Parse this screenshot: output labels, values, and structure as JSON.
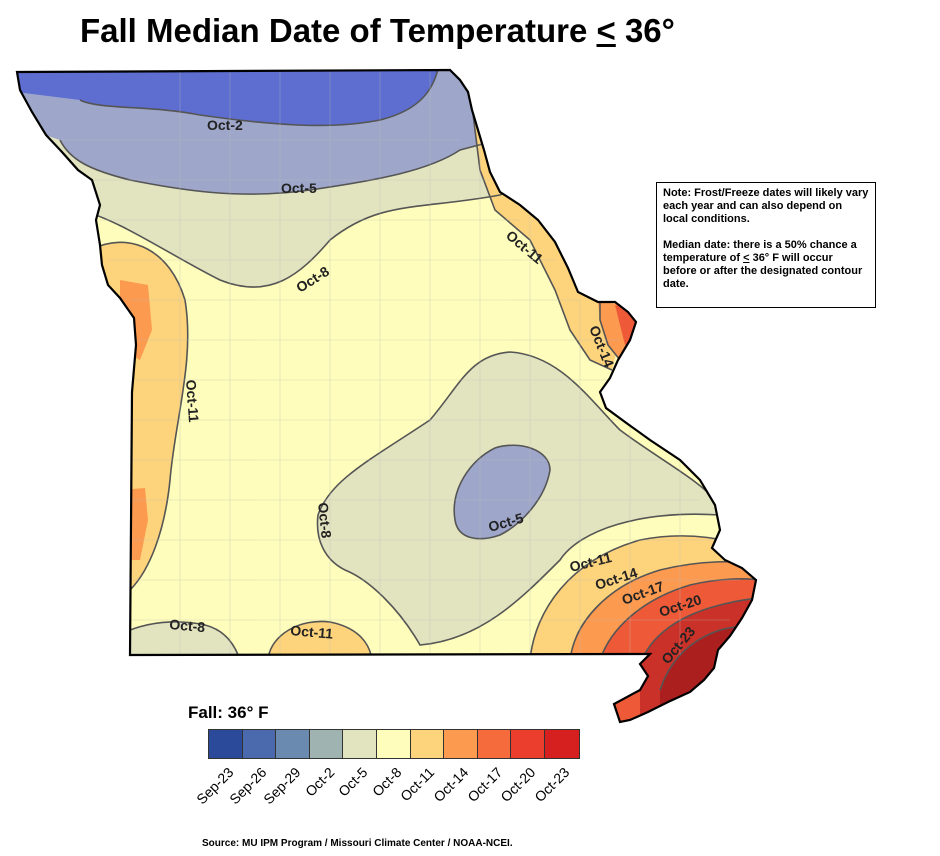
{
  "title": {
    "prefix": "Fall Median Date of Temperature ",
    "symbol": "<",
    "suffix": " 36°"
  },
  "note": {
    "line1": "Note: Frost/Freeze dates will likely vary each year and can also depend on local conditions.",
    "line2_prefix": "Median date: there is a 50% chance a temperature of ",
    "line2_symbol": "<",
    "line2_suffix": " 36° F will occur before or after the designated contour date."
  },
  "legend": {
    "title": "Fall: 36° F",
    "classes": [
      {
        "label": "Sep-23",
        "color": "#2b4a9a"
      },
      {
        "label": "Sep-26",
        "color": "#4a6aad"
      },
      {
        "label": "Sep-29",
        "color": "#6a8ab0"
      },
      {
        "label": "Oct-2",
        "color": "#9fb3b0"
      },
      {
        "label": "Oct-5",
        "color": "#e1e4bf"
      },
      {
        "label": "Oct-8",
        "color": "#fefdbb"
      },
      {
        "label": "Oct-11",
        "color": "#fdd47c"
      },
      {
        "label": "Oct-14",
        "color": "#fc9a50"
      },
      {
        "label": "Oct-17",
        "color": "#f66b3c"
      },
      {
        "label": "Oct-20",
        "color": "#ec3e2c"
      },
      {
        "label": "Oct-23",
        "color": "#d61f1f"
      }
    ]
  },
  "map": {
    "zone_colors": {
      "oct2": "#5d6ed0",
      "oct5": "#9ea7c9",
      "oct8": "#e2e4bf",
      "oct11": "#fefdbb",
      "oct14": "#fdd47c",
      "oct17": "#fc9a50",
      "oct20": "#ee5a38",
      "oct23": "#ca3128",
      "deep": "#ab1f1f"
    },
    "contour_labels": {
      "oct2_north": "Oct-2",
      "oct5_north": "Oct-5",
      "oct8_north": "Oct-8",
      "oct11_east": "Oct-11",
      "oct14_east": "Oct-14",
      "oct11_west": "Oct-11",
      "oct8_central": "Oct-8",
      "oct5_central": "Oct-5",
      "oct8_sw": "Oct-8",
      "oct11_south": "Oct-11",
      "oct11_se": "Oct-11",
      "oct14_se": "Oct-14",
      "oct17_se": "Oct-17",
      "oct20_se": "Oct-20",
      "oct23_se": "Oct-23"
    }
  },
  "source": "Source: MU IPM Program / Missouri Climate Center / NOAA-NCEI."
}
